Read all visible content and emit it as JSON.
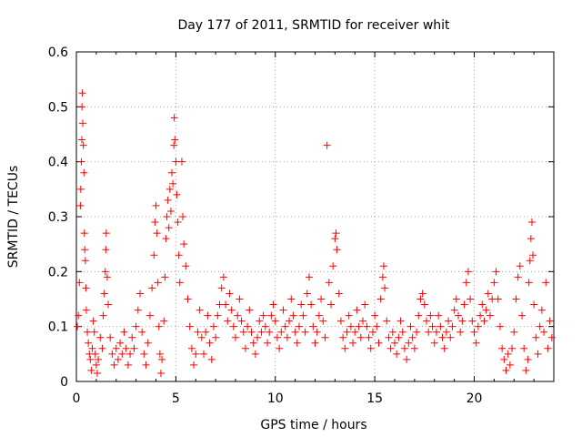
{
  "chart_data": {
    "type": "scatter",
    "title": "Day 177 of 2011, SRMTID for receiver whit",
    "xlabel": "GPS time / hours",
    "ylabel": "SRMTID / TECUs",
    "xlim": [
      0,
      24
    ],
    "ylim": [
      0,
      0.6
    ],
    "xticks": [
      0,
      5,
      10,
      15,
      20
    ],
    "yticks": [
      0,
      0.1,
      0.2,
      0.3,
      0.4,
      0.5,
      0.6
    ],
    "xtick_labels": [
      "0",
      "5",
      "10",
      "15",
      "20"
    ],
    "ytick_labels": [
      "0",
      "0.1",
      "0.2",
      "0.3",
      "0.4",
      "0.5",
      "0.6"
    ],
    "grid": true,
    "marker": "plus",
    "color": "#ff0000",
    "series": [
      {
        "name": "SRMTID",
        "points": [
          [
            0.05,
            0.1
          ],
          [
            0.1,
            0.12
          ],
          [
            0.15,
            0.18
          ],
          [
            0.2,
            0.32
          ],
          [
            0.22,
            0.35
          ],
          [
            0.25,
            0.4
          ],
          [
            0.27,
            0.44
          ],
          [
            0.28,
            0.5
          ],
          [
            0.3,
            0.525
          ],
          [
            0.32,
            0.47
          ],
          [
            0.35,
            0.43
          ],
          [
            0.38,
            0.38
          ],
          [
            0.4,
            0.27
          ],
          [
            0.42,
            0.24
          ],
          [
            0.45,
            0.22
          ],
          [
            0.48,
            0.17
          ],
          [
            0.5,
            0.13
          ],
          [
            0.55,
            0.09
          ],
          [
            0.6,
            0.07
          ],
          [
            0.65,
            0.05
          ],
          [
            0.7,
            0.04
          ],
          [
            0.75,
            0.02
          ],
          [
            0.8,
            0.06
          ],
          [
            0.85,
            0.11
          ],
          [
            0.9,
            0.09
          ],
          [
            0.95,
            0.05
          ],
          [
            1.0,
            0.03
          ],
          [
            1.05,
            0.015
          ],
          [
            1.1,
            0.04
          ],
          [
            1.2,
            0.08
          ],
          [
            1.3,
            0.06
          ],
          [
            1.35,
            0.12
          ],
          [
            1.4,
            0.16
          ],
          [
            1.45,
            0.2
          ],
          [
            1.48,
            0.24
          ],
          [
            1.5,
            0.27
          ],
          [
            1.55,
            0.19
          ],
          [
            1.6,
            0.14
          ],
          [
            1.7,
            0.08
          ],
          [
            1.8,
            0.05
          ],
          [
            1.9,
            0.03
          ],
          [
            2.0,
            0.06
          ],
          [
            2.1,
            0.04
          ],
          [
            2.2,
            0.07
          ],
          [
            2.3,
            0.05
          ],
          [
            2.4,
            0.09
          ],
          [
            2.5,
            0.06
          ],
          [
            2.6,
            0.03
          ],
          [
            2.7,
            0.05
          ],
          [
            2.8,
            0.08
          ],
          [
            2.9,
            0.06
          ],
          [
            3.0,
            0.1
          ],
          [
            3.1,
            0.13
          ],
          [
            3.2,
            0.16
          ],
          [
            3.3,
            0.09
          ],
          [
            3.4,
            0.05
          ],
          [
            3.5,
            0.03
          ],
          [
            3.6,
            0.07
          ],
          [
            3.7,
            0.12
          ],
          [
            3.8,
            0.17
          ],
          [
            3.9,
            0.23
          ],
          [
            3.95,
            0.29
          ],
          [
            4.0,
            0.32
          ],
          [
            4.05,
            0.27
          ],
          [
            4.1,
            0.18
          ],
          [
            4.15,
            0.1
          ],
          [
            4.2,
            0.05
          ],
          [
            4.25,
            0.015
          ],
          [
            4.3,
            0.04
          ],
          [
            4.4,
            0.11
          ],
          [
            4.45,
            0.19
          ],
          [
            4.5,
            0.26
          ],
          [
            4.55,
            0.3
          ],
          [
            4.6,
            0.33
          ],
          [
            4.65,
            0.28
          ],
          [
            4.7,
            0.35
          ],
          [
            4.75,
            0.31
          ],
          [
            4.8,
            0.38
          ],
          [
            4.85,
            0.36
          ],
          [
            4.9,
            0.43
          ],
          [
            4.92,
            0.48
          ],
          [
            4.95,
            0.44
          ],
          [
            5.0,
            0.4
          ],
          [
            5.05,
            0.34
          ],
          [
            5.1,
            0.29
          ],
          [
            5.15,
            0.23
          ],
          [
            5.2,
            0.18
          ],
          [
            5.3,
            0.4
          ],
          [
            5.35,
            0.3
          ],
          [
            5.4,
            0.25
          ],
          [
            5.5,
            0.21
          ],
          [
            5.6,
            0.15
          ],
          [
            5.7,
            0.1
          ],
          [
            5.8,
            0.06
          ],
          [
            5.9,
            0.03
          ],
          [
            6.0,
            0.05
          ],
          [
            6.1,
            0.09
          ],
          [
            6.2,
            0.13
          ],
          [
            6.3,
            0.08
          ],
          [
            6.4,
            0.05
          ],
          [
            6.5,
            0.09
          ],
          [
            6.6,
            0.12
          ],
          [
            6.7,
            0.07
          ],
          [
            6.8,
            0.04
          ],
          [
            6.9,
            0.1
          ],
          [
            7.0,
            0.08
          ],
          [
            7.1,
            0.12
          ],
          [
            7.2,
            0.14
          ],
          [
            7.3,
            0.17
          ],
          [
            7.4,
            0.19
          ],
          [
            7.5,
            0.14
          ],
          [
            7.6,
            0.11
          ],
          [
            7.7,
            0.16
          ],
          [
            7.8,
            0.13
          ],
          [
            7.9,
            0.1
          ],
          [
            8.0,
            0.08
          ],
          [
            8.1,
            0.12
          ],
          [
            8.2,
            0.15
          ],
          [
            8.3,
            0.11
          ],
          [
            8.4,
            0.09
          ],
          [
            8.5,
            0.06
          ],
          [
            8.6,
            0.1
          ],
          [
            8.7,
            0.13
          ],
          [
            8.8,
            0.09
          ],
          [
            8.9,
            0.07
          ],
          [
            9.0,
            0.05
          ],
          [
            9.1,
            0.08
          ],
          [
            9.2,
            0.11
          ],
          [
            9.3,
            0.09
          ],
          [
            9.4,
            0.12
          ],
          [
            9.5,
            0.1
          ],
          [
            9.6,
            0.07
          ],
          [
            9.7,
            0.09
          ],
          [
            9.8,
            0.12
          ],
          [
            9.9,
            0.14
          ],
          [
            10.0,
            0.11
          ],
          [
            10.1,
            0.08
          ],
          [
            10.2,
            0.06
          ],
          [
            10.3,
            0.09
          ],
          [
            10.4,
            0.13
          ],
          [
            10.5,
            0.1
          ],
          [
            10.6,
            0.08
          ],
          [
            10.7,
            0.11
          ],
          [
            10.8,
            0.15
          ],
          [
            10.9,
            0.12
          ],
          [
            11.0,
            0.09
          ],
          [
            11.1,
            0.07
          ],
          [
            11.2,
            0.1
          ],
          [
            11.3,
            0.14
          ],
          [
            11.4,
            0.12
          ],
          [
            11.5,
            0.09
          ],
          [
            11.6,
            0.16
          ],
          [
            11.7,
            0.19
          ],
          [
            11.8,
            0.14
          ],
          [
            11.9,
            0.1
          ],
          [
            12.0,
            0.07
          ],
          [
            12.1,
            0.09
          ],
          [
            12.2,
            0.12
          ],
          [
            12.3,
            0.15
          ],
          [
            12.4,
            0.11
          ],
          [
            12.5,
            0.08
          ],
          [
            12.6,
            0.43
          ],
          [
            12.7,
            0.18
          ],
          [
            12.8,
            0.14
          ],
          [
            12.9,
            0.21
          ],
          [
            13.0,
            0.26
          ],
          [
            13.05,
            0.27
          ],
          [
            13.1,
            0.24
          ],
          [
            13.2,
            0.16
          ],
          [
            13.3,
            0.11
          ],
          [
            13.4,
            0.08
          ],
          [
            13.5,
            0.06
          ],
          [
            13.6,
            0.09
          ],
          [
            13.7,
            0.12
          ],
          [
            13.8,
            0.1
          ],
          [
            13.9,
            0.07
          ],
          [
            14.0,
            0.09
          ],
          [
            14.1,
            0.13
          ],
          [
            14.2,
            0.1
          ],
          [
            14.3,
            0.08
          ],
          [
            14.4,
            0.11
          ],
          [
            14.5,
            0.14
          ],
          [
            14.6,
            0.1
          ],
          [
            14.7,
            0.08
          ],
          [
            14.8,
            0.06
          ],
          [
            14.9,
            0.09
          ],
          [
            15.0,
            0.12
          ],
          [
            15.1,
            0.1
          ],
          [
            15.2,
            0.07
          ],
          [
            15.3,
            0.15
          ],
          [
            15.4,
            0.19
          ],
          [
            15.45,
            0.21
          ],
          [
            15.5,
            0.17
          ],
          [
            15.6,
            0.11
          ],
          [
            15.7,
            0.08
          ],
          [
            15.8,
            0.06
          ],
          [
            15.9,
            0.09
          ],
          [
            16.0,
            0.07
          ],
          [
            16.1,
            0.05
          ],
          [
            16.2,
            0.08
          ],
          [
            16.3,
            0.11
          ],
          [
            16.4,
            0.09
          ],
          [
            16.5,
            0.06
          ],
          [
            16.6,
            0.04
          ],
          [
            16.7,
            0.07
          ],
          [
            16.8,
            0.1
          ],
          [
            16.9,
            0.08
          ],
          [
            17.0,
            0.06
          ],
          [
            17.1,
            0.09
          ],
          [
            17.2,
            0.12
          ],
          [
            17.3,
            0.15
          ],
          [
            17.4,
            0.16
          ],
          [
            17.5,
            0.14
          ],
          [
            17.6,
            0.11
          ],
          [
            17.7,
            0.09
          ],
          [
            17.8,
            0.12
          ],
          [
            17.9,
            0.1
          ],
          [
            18.0,
            0.07
          ],
          [
            18.1,
            0.09
          ],
          [
            18.2,
            0.12
          ],
          [
            18.3,
            0.1
          ],
          [
            18.4,
            0.08
          ],
          [
            18.5,
            0.06
          ],
          [
            18.6,
            0.09
          ],
          [
            18.7,
            0.11
          ],
          [
            18.8,
            0.08
          ],
          [
            18.9,
            0.1
          ],
          [
            19.0,
            0.13
          ],
          [
            19.1,
            0.15
          ],
          [
            19.2,
            0.12
          ],
          [
            19.3,
            0.09
          ],
          [
            19.4,
            0.11
          ],
          [
            19.5,
            0.14
          ],
          [
            19.6,
            0.18
          ],
          [
            19.7,
            0.2
          ],
          [
            19.8,
            0.15
          ],
          [
            19.9,
            0.11
          ],
          [
            20.0,
            0.09
          ],
          [
            20.1,
            0.07
          ],
          [
            20.2,
            0.1
          ],
          [
            20.3,
            0.12
          ],
          [
            20.4,
            0.14
          ],
          [
            20.5,
            0.11
          ],
          [
            20.6,
            0.13
          ],
          [
            20.7,
            0.16
          ],
          [
            20.8,
            0.12
          ],
          [
            20.9,
            0.15
          ],
          [
            21.0,
            0.18
          ],
          [
            21.1,
            0.2
          ],
          [
            21.2,
            0.15
          ],
          [
            21.3,
            0.1
          ],
          [
            21.4,
            0.06
          ],
          [
            21.5,
            0.04
          ],
          [
            21.6,
            0.02
          ],
          [
            21.7,
            0.05
          ],
          [
            21.8,
            0.03
          ],
          [
            21.9,
            0.06
          ],
          [
            22.0,
            0.09
          ],
          [
            22.1,
            0.15
          ],
          [
            22.2,
            0.19
          ],
          [
            22.3,
            0.21
          ],
          [
            22.4,
            0.12
          ],
          [
            22.5,
            0.06
          ],
          [
            22.6,
            0.02
          ],
          [
            22.7,
            0.04
          ],
          [
            22.75,
            0.18
          ],
          [
            22.8,
            0.22
          ],
          [
            22.85,
            0.26
          ],
          [
            22.9,
            0.29
          ],
          [
            22.95,
            0.23
          ],
          [
            23.0,
            0.14
          ],
          [
            23.1,
            0.08
          ],
          [
            23.2,
            0.05
          ],
          [
            23.3,
            0.1
          ],
          [
            23.4,
            0.13
          ],
          [
            23.5,
            0.09
          ],
          [
            23.6,
            0.18
          ],
          [
            23.7,
            0.06
          ],
          [
            23.8,
            0.11
          ],
          [
            23.9,
            0.08
          ]
        ]
      }
    ]
  }
}
